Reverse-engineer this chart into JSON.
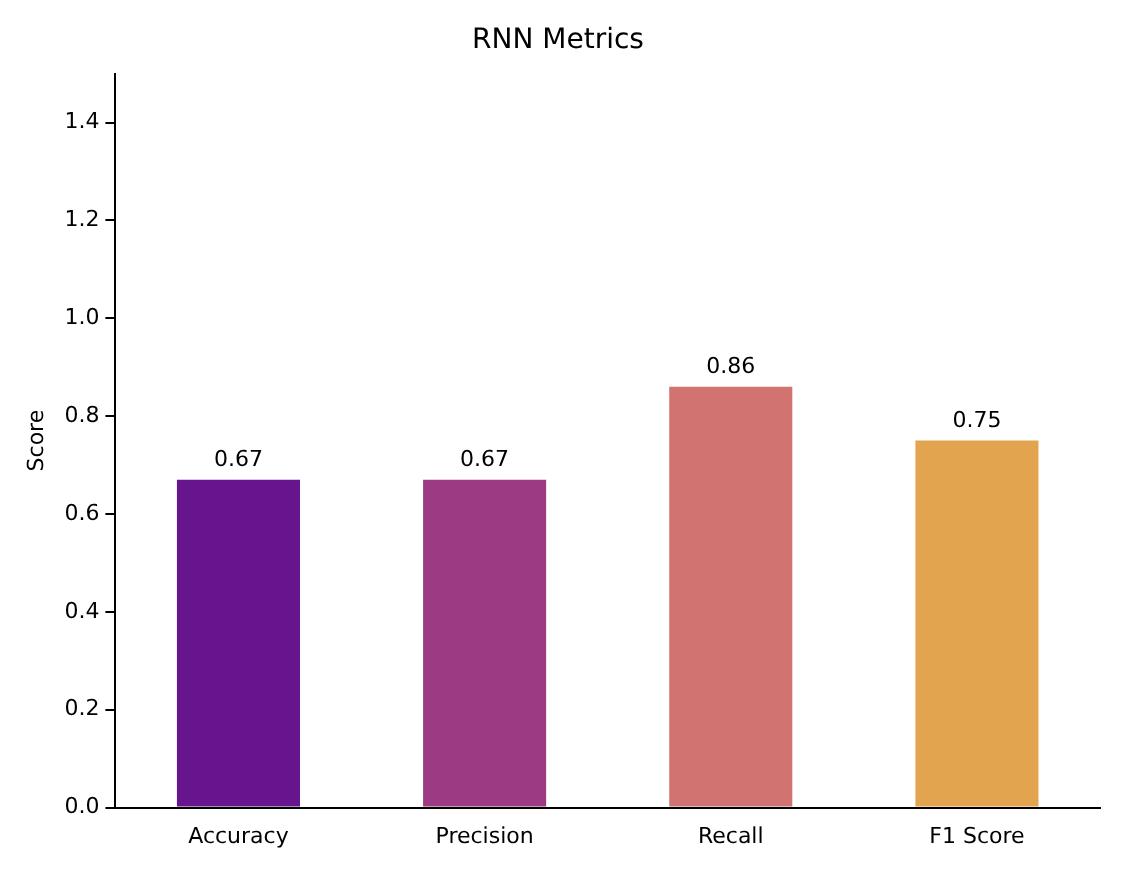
{
  "chart_data": {
    "type": "bar",
    "title": "RNN Metrics",
    "ylabel": "Score",
    "categories": [
      "Accuracy",
      "Precision",
      "Recall",
      "F1 Score"
    ],
    "values": [
      0.67,
      0.67,
      0.86,
      0.75
    ],
    "colors": [
      "#67158f",
      "#9c3a84",
      "#d07371",
      "#e3a44f"
    ],
    "ylim": [
      0,
      1.5
    ],
    "yticks": [
      {
        "value": 0,
        "label": "0.0"
      },
      0.2,
      0.4,
      0.6,
      0.8,
      {
        "value": 1,
        "label": "1.0"
      },
      1.2,
      1.4
    ],
    "data_labels": true,
    "grid": false,
    "legend": false
  }
}
